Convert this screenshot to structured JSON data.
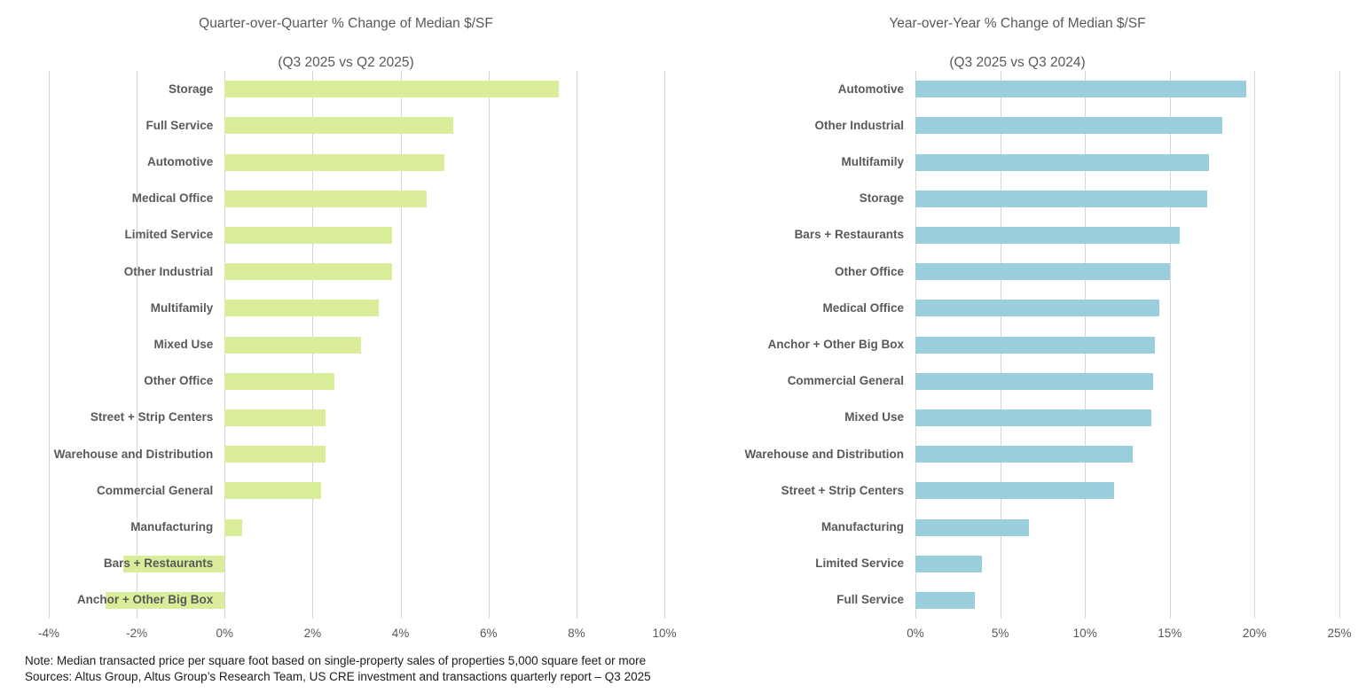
{
  "chart_data": [
    {
      "type": "bar",
      "orientation": "horizontal",
      "title": "Quarter-over-Quarter % Change of Median $/SF",
      "subtitle": "(Q3 2025 vs Q2 2025)",
      "bar_color": "#d9ed9b",
      "xlim": [
        -4,
        10
      ],
      "xtick_step": 2,
      "xtick_suffix": "%",
      "grid": true,
      "legend": "none",
      "xlabel": "",
      "ylabel": "",
      "categories": [
        "Storage",
        "Full Service",
        "Automotive",
        "Medical Office",
        "Limited Service",
        "Other Industrial",
        "Multifamily",
        "Mixed Use",
        "Other Office",
        "Street + Strip Centers",
        "Warehouse and Distribution",
        "Commercial General",
        "Manufacturing",
        "Bars + Restaurants",
        "Anchor + Other Big Box"
      ],
      "values": [
        7.6,
        5.2,
        5.0,
        4.6,
        3.8,
        3.8,
        3.5,
        3.1,
        2.5,
        2.3,
        2.3,
        2.2,
        0.4,
        -2.3,
        -2.7
      ]
    },
    {
      "type": "bar",
      "orientation": "horizontal",
      "title": "Year-over-Year % Change of Median $/SF",
      "subtitle": "(Q3 2025 vs Q3 2024)",
      "bar_color": "#9bcedd",
      "xlim": [
        0,
        25
      ],
      "xtick_step": 5,
      "xtick_suffix": "%",
      "grid": true,
      "legend": "none",
      "xlabel": "",
      "ylabel": "",
      "categories": [
        "Automotive",
        "Other Industrial",
        "Multifamily",
        "Storage",
        "Bars + Restaurants",
        "Other Office",
        "Medical Office",
        "Anchor + Other Big Box",
        "Commercial General",
        "Mixed Use",
        "Warehouse and Distribution",
        "Street + Strip Centers",
        "Manufacturing",
        "Limited Service",
        "Full Service"
      ],
      "values": [
        19.5,
        18.1,
        17.3,
        17.2,
        15.6,
        15.0,
        14.4,
        14.1,
        14.0,
        13.9,
        12.8,
        11.7,
        6.7,
        3.9,
        3.5
      ]
    }
  ],
  "footer": {
    "note": "Note: Median transacted price per square foot based on single-property sales of properties 5,000 square feet or more",
    "sources": "Sources: Altus Group, Altus Group’s Research Team, US CRE investment and transactions quarterly report – Q3 2025"
  }
}
